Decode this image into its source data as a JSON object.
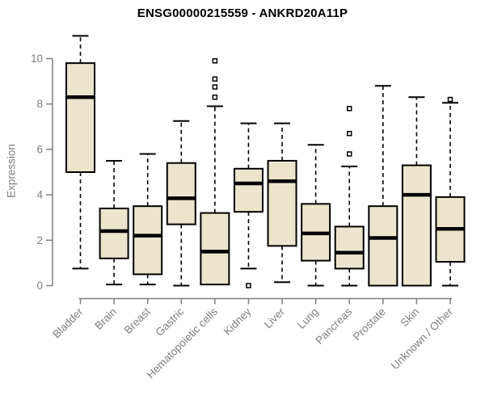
{
  "title": "ENSG00000215559 - ANKRD20A11P",
  "chart_data": {
    "type": "boxplot",
    "title": "ENSG00000215559 - ANKRD20A11P",
    "xlabel": "",
    "ylabel": "Expression",
    "ylim": [
      0,
      10
    ],
    "yticks": [
      0,
      2,
      4,
      6,
      8,
      10
    ],
    "grid": false,
    "legend_position": "none",
    "marker": "open-square",
    "whisker_style": "dashed",
    "categories": [
      "Bladder",
      "Brain",
      "Breast",
      "Gastric",
      "Hematopoietic cells",
      "Kidney",
      "Liver",
      "Lung",
      "Pancreas",
      "Prostate",
      "Skin",
      "Unknown / Other"
    ],
    "series": [
      {
        "name": "Bladder",
        "whisker_low": 0.75,
        "q1": 5.0,
        "median": 8.3,
        "q3": 9.8,
        "whisker_high": 11.0,
        "outliers": []
      },
      {
        "name": "Brain",
        "whisker_low": 0.05,
        "q1": 1.2,
        "median": 2.4,
        "q3": 3.4,
        "whisker_high": 5.5,
        "outliers": []
      },
      {
        "name": "Breast",
        "whisker_low": 0.05,
        "q1": 0.5,
        "median": 2.2,
        "q3": 3.5,
        "whisker_high": 5.8,
        "outliers": []
      },
      {
        "name": "Gastric",
        "whisker_low": 0.0,
        "q1": 2.7,
        "median": 3.85,
        "q3": 5.4,
        "whisker_high": 7.25,
        "outliers": []
      },
      {
        "name": "Hematopoietic cells",
        "whisker_low": 0.05,
        "q1": 0.05,
        "median": 1.5,
        "q3": 3.2,
        "whisker_high": 7.9,
        "outliers": [
          8.3,
          8.75,
          9.1,
          9.9
        ]
      },
      {
        "name": "Kidney",
        "whisker_low": 0.75,
        "q1": 3.25,
        "median": 4.5,
        "q3": 5.15,
        "whisker_high": 7.15,
        "outliers": [
          0.0
        ]
      },
      {
        "name": "Liver",
        "whisker_low": 0.15,
        "q1": 1.75,
        "median": 4.6,
        "q3": 5.5,
        "whisker_high": 7.15,
        "outliers": []
      },
      {
        "name": "Lung",
        "whisker_low": 0.0,
        "q1": 1.1,
        "median": 2.3,
        "q3": 3.6,
        "whisker_high": 6.2,
        "outliers": []
      },
      {
        "name": "Pancreas",
        "whisker_low": 0.0,
        "q1": 0.75,
        "median": 1.45,
        "q3": 2.6,
        "whisker_high": 5.25,
        "outliers": [
          5.8,
          6.7,
          7.8
        ]
      },
      {
        "name": "Prostate",
        "whisker_low": 0.0,
        "q1": 0.0,
        "median": 2.1,
        "q3": 3.5,
        "whisker_high": 8.8,
        "outliers": []
      },
      {
        "name": "Skin",
        "whisker_low": 0.0,
        "q1": 0.0,
        "median": 4.0,
        "q3": 5.3,
        "whisker_high": 8.3,
        "outliers": []
      },
      {
        "name": "Unknown / Other",
        "whisker_low": 0.0,
        "q1": 1.05,
        "median": 2.5,
        "q3": 3.9,
        "whisker_high": 8.05,
        "outliers": [
          8.2
        ]
      }
    ],
    "colors": {
      "box_fill": "#EBE5CD",
      "box_border": "#000000",
      "median": "#000000",
      "whisker": "#000000",
      "outlier_stroke": "#000000",
      "outlier_fill": "#FFFFFF",
      "axis": "#7F7F7F",
      "tick_label": "#7F7F7F",
      "title": "#000000",
      "background": "#FFFFFF"
    }
  }
}
